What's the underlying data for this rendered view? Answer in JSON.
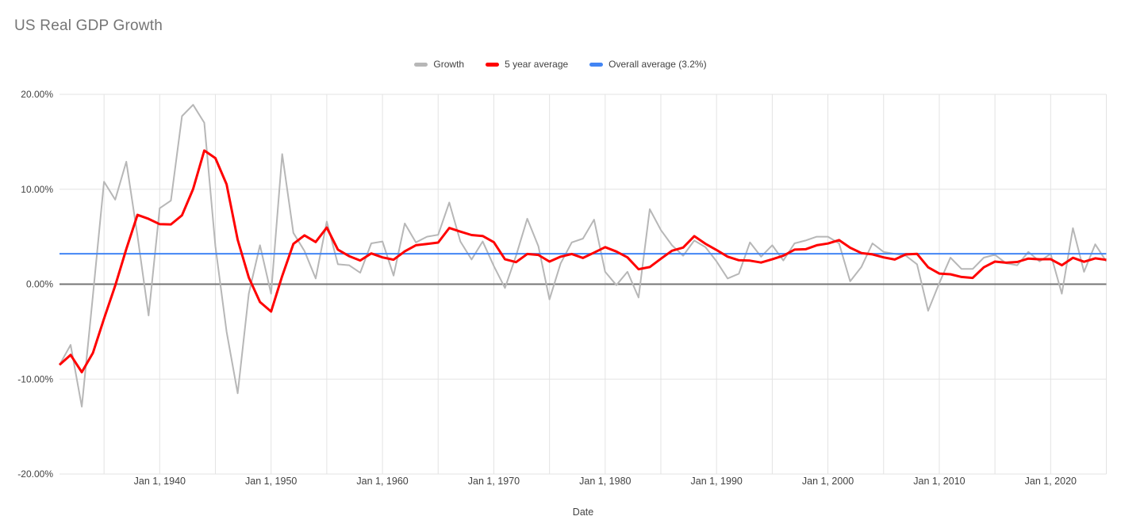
{
  "chart_data": {
    "type": "line",
    "title": "US Real GDP Growth",
    "xlabel": "Date",
    "ylabel": "",
    "ylim": [
      -20,
      20
    ],
    "grid": true,
    "legend_position": "top",
    "background": "#ffffff",
    "y_tick_labels": [
      "20.00%",
      "10.00%",
      "0.00%",
      "-10.00%",
      "-20.00%"
    ],
    "y_tick_values": [
      20,
      10,
      0,
      -10,
      -20
    ],
    "x_axis_years": [
      1931,
      2025
    ],
    "x_gridline_step_years": 5,
    "x_tick_years": [
      1940,
      1950,
      1960,
      1970,
      1980,
      1990,
      2000,
      2010,
      2020
    ],
    "x_tick_labels": [
      "Jan 1, 1940",
      "Jan 1, 1950",
      "Jan 1, 1960",
      "Jan 1, 1970",
      "Jan 1, 1980",
      "Jan 1, 1990",
      "Jan 1, 2000",
      "Jan 1, 2010",
      "Jan 1, 2020"
    ],
    "point_dating_note": "annual growth values plotted at year-end (Dec 31 of each year, i.e. at the Jan 1 gridline of the following year)",
    "years": [
      1930,
      1931,
      1932,
      1933,
      1934,
      1935,
      1936,
      1937,
      1938,
      1939,
      1940,
      1941,
      1942,
      1943,
      1944,
      1945,
      1946,
      1947,
      1948,
      1949,
      1950,
      1951,
      1952,
      1953,
      1954,
      1955,
      1956,
      1957,
      1958,
      1959,
      1960,
      1961,
      1962,
      1963,
      1964,
      1965,
      1966,
      1967,
      1968,
      1969,
      1970,
      1971,
      1972,
      1973,
      1974,
      1975,
      1976,
      1977,
      1978,
      1979,
      1980,
      1981,
      1982,
      1983,
      1984,
      1985,
      1986,
      1987,
      1988,
      1989,
      1990,
      1991,
      1992,
      1993,
      1994,
      1995,
      1996,
      1997,
      1998,
      1999,
      2000,
      2001,
      2002,
      2003,
      2004,
      2005,
      2006,
      2007,
      2008,
      2009,
      2010,
      2011,
      2012,
      2013,
      2014,
      2015,
      2016,
      2017,
      2018,
      2019,
      2020,
      2021,
      2022,
      2023,
      2024
    ],
    "series": [
      {
        "name": "Growth",
        "color": "#b7b7b7",
        "width": 2,
        "values": [
          -8.5,
          -6.4,
          -12.9,
          -1.2,
          10.8,
          8.9,
          12.9,
          5.1,
          -3.3,
          8.0,
          8.8,
          17.7,
          18.9,
          17.0,
          4.0,
          -5.0,
          -11.5,
          -1.0,
          4.1,
          -1.0,
          13.7,
          5.4,
          3.5,
          0.6,
          6.6,
          2.1,
          2.0,
          1.2,
          4.3,
          4.5,
          0.9,
          6.4,
          4.4,
          5.0,
          5.2,
          8.6,
          4.5,
          2.6,
          4.5,
          1.9,
          -0.4,
          3.0,
          6.9,
          4.0,
          -1.6,
          2.2,
          4.4,
          4.8,
          6.8,
          1.3,
          -0.1,
          1.3,
          -1.4,
          7.9,
          5.7,
          4.1,
          3.0,
          4.6,
          3.9,
          2.4,
          0.6,
          1.1,
          4.4,
          2.9,
          4.1,
          2.5,
          4.3,
          4.6,
          5.0,
          5.0,
          4.3,
          0.3,
          1.8,
          4.3,
          3.4,
          3.2,
          3.0,
          2.1,
          -2.8,
          0.1,
          2.8,
          1.6,
          1.6,
          2.8,
          3.1,
          2.2,
          2.0,
          3.4,
          2.4,
          3.2,
          -1.0,
          5.9,
          1.3,
          4.2,
          2.4
        ]
      },
      {
        "name": "5 year average",
        "color": "#ff0000",
        "width": 3,
        "derived_from": "trailing 5-year average of Growth (partial windows at series start)",
        "values": [
          -8.5,
          -7.45,
          -9.27,
          -7.25,
          -3.64,
          -0.16,
          3.7,
          7.3,
          6.88,
          6.32,
          6.3,
          7.26,
          10.02,
          14.08,
          13.28,
          10.52,
          4.68,
          0.7,
          -1.88,
          -2.88,
          0.86,
          4.24,
          5.14,
          4.44,
          5.96,
          3.64,
          2.96,
          2.5,
          3.24,
          2.82,
          2.58,
          3.46,
          4.1,
          4.24,
          4.38,
          5.92,
          5.54,
          5.18,
          5.08,
          4.42,
          2.62,
          2.32,
          3.18,
          3.08,
          2.38,
          2.9,
          3.18,
          2.76,
          3.32,
          3.9,
          3.44,
          2.82,
          1.58,
          1.8,
          2.68,
          3.52,
          3.86,
          5.06,
          4.26,
          3.6,
          2.9,
          2.52,
          2.48,
          2.28,
          2.62,
          3.0,
          3.64,
          3.68,
          4.1,
          4.28,
          4.64,
          3.84,
          3.28,
          3.14,
          2.82,
          2.6,
          3.14,
          3.2,
          1.78,
          1.12,
          1.04,
          0.76,
          0.66,
          1.78,
          2.38,
          2.26,
          2.34,
          2.7,
          2.62,
          2.64,
          2.0,
          2.78,
          2.36,
          2.72,
          2.56
        ]
      },
      {
        "name": "Overall average (3.2%)",
        "color": "#4285f4",
        "width": 2,
        "type": "constant",
        "value": 3.2
      }
    ],
    "colors": {
      "title_text": "#757575",
      "axis_text": "#424242",
      "gridline": "#e3e3e3",
      "zero_line": "#757575"
    }
  }
}
